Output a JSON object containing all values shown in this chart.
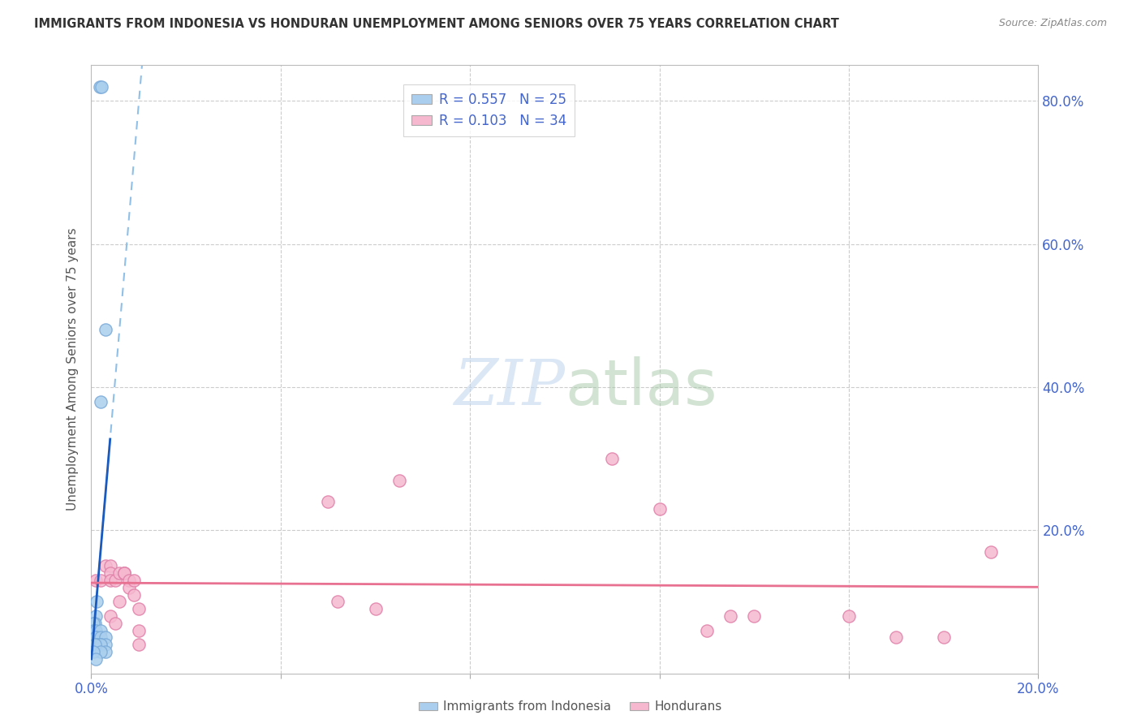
{
  "title": "IMMIGRANTS FROM INDONESIA VS HONDURAN UNEMPLOYMENT AMONG SENIORS OVER 75 YEARS CORRELATION CHART",
  "source": "Source: ZipAtlas.com",
  "ylabel": "Unemployment Among Seniors over 75 years",
  "xlim": [
    0.0,
    0.2
  ],
  "ylim": [
    0.0,
    0.85
  ],
  "x_tick_positions": [
    0.0,
    0.04,
    0.08,
    0.12,
    0.16,
    0.2
  ],
  "x_tick_labels": [
    "0.0%",
    "",
    "",
    "",
    "",
    "20.0%"
  ],
  "y_tick_positions": [
    0.0,
    0.2,
    0.4,
    0.6,
    0.8
  ],
  "y_tick_labels_right": [
    "",
    "20.0%",
    "40.0%",
    "60.0%",
    "80.0%"
  ],
  "legend1_label": "R = 0.557   N = 25",
  "legend2_label": "R = 0.103   N = 34",
  "legend_color1": "#aacfee",
  "legend_color2": "#f5b8cf",
  "watermark_zip": "ZIP",
  "watermark_atlas": "atlas",
  "indonesia_scatter_x": [
    0.0018,
    0.0022,
    0.003,
    0.002,
    0.0012,
    0.001,
    0.0008,
    0.0005,
    0.0005,
    0.001,
    0.002,
    0.001,
    0.001,
    0.002,
    0.003,
    0.002,
    0.001,
    0.0015,
    0.003,
    0.002,
    0.0008,
    0.003,
    0.002,
    0.0005,
    0.001
  ],
  "indonesia_scatter_y": [
    0.82,
    0.82,
    0.48,
    0.38,
    0.1,
    0.08,
    0.07,
    0.07,
    0.06,
    0.06,
    0.06,
    0.05,
    0.05,
    0.05,
    0.05,
    0.04,
    0.04,
    0.04,
    0.04,
    0.04,
    0.04,
    0.03,
    0.03,
    0.03,
    0.02
  ],
  "honduran_scatter_x": [
    0.001,
    0.002,
    0.003,
    0.004,
    0.004,
    0.004,
    0.004,
    0.005,
    0.005,
    0.006,
    0.006,
    0.007,
    0.007,
    0.007,
    0.008,
    0.008,
    0.009,
    0.009,
    0.01,
    0.01,
    0.01,
    0.05,
    0.052,
    0.06,
    0.065,
    0.11,
    0.12,
    0.13,
    0.135,
    0.14,
    0.16,
    0.17,
    0.18,
    0.19
  ],
  "honduran_scatter_y": [
    0.13,
    0.13,
    0.15,
    0.15,
    0.14,
    0.13,
    0.08,
    0.13,
    0.07,
    0.14,
    0.1,
    0.14,
    0.14,
    0.14,
    0.13,
    0.12,
    0.13,
    0.11,
    0.09,
    0.04,
    0.06,
    0.24,
    0.1,
    0.09,
    0.27,
    0.3,
    0.23,
    0.06,
    0.08,
    0.08,
    0.08,
    0.05,
    0.05,
    0.17
  ],
  "scatter_color_indonesia": "#aacfee",
  "scatter_color_honduran": "#f5b8cf",
  "scatter_edge_indonesia": "#7aaad8",
  "scatter_edge_honduran": "#e080a8",
  "trendline_color_indonesia": "#1a5abf",
  "trendline_color_honduran": "#e87090",
  "trendline_dash_color_indonesia": "#90c0e8",
  "background_color": "#ffffff",
  "grid_color": "#cccccc",
  "axis_label_color": "#4466cc",
  "title_color": "#333333",
  "legend_text_color": "#333333",
  "legend_number_color": "#4466cc"
}
